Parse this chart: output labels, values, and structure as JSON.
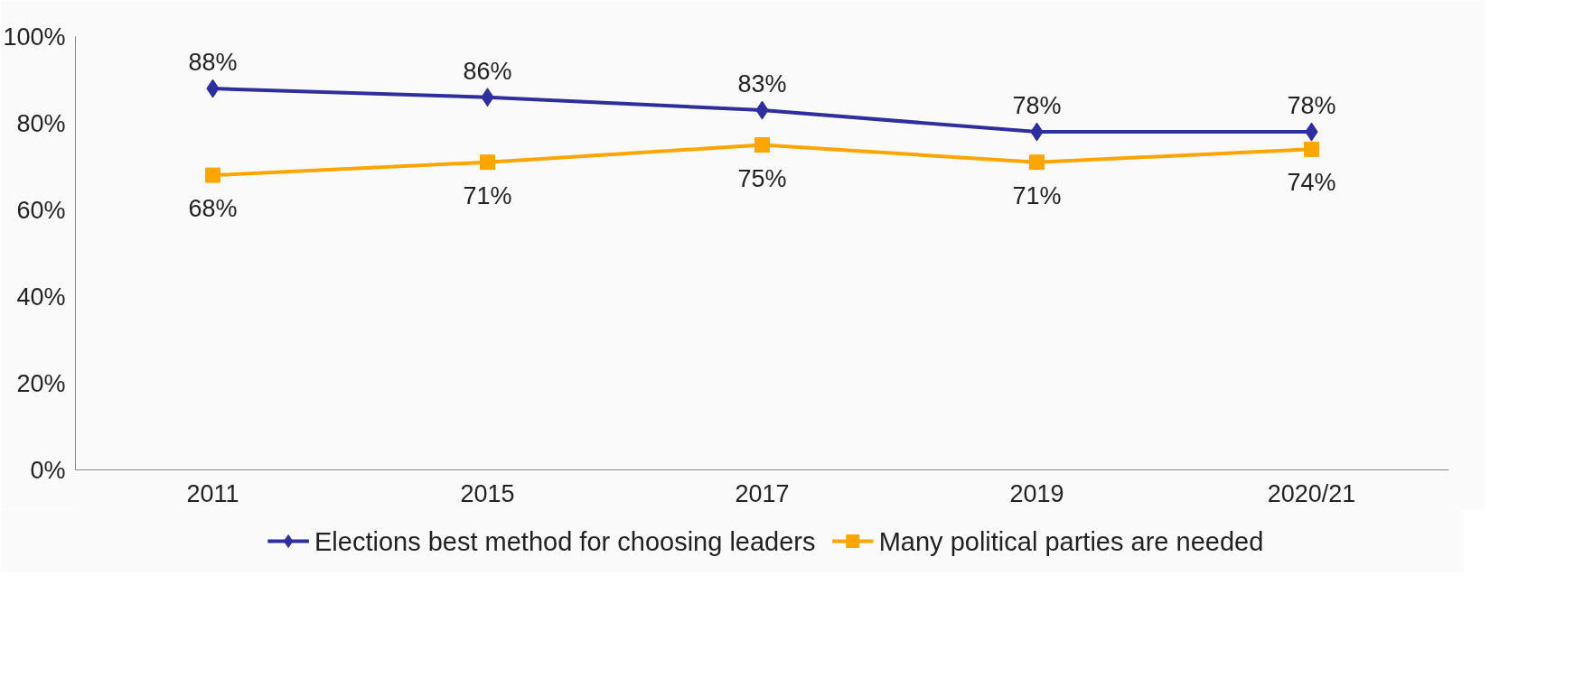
{
  "chart_data": {
    "type": "line",
    "categories": [
      "2011",
      "2015",
      "2017",
      "2019",
      "2020/21"
    ],
    "series": [
      {
        "name": "Elections best method for choosing leaders",
        "color": "#2e2e9e",
        "marker": "diamond",
        "values": [
          88,
          86,
          83,
          78,
          78
        ],
        "value_labels": [
          "88%",
          "86%",
          "83%",
          "78%",
          "78%"
        ]
      },
      {
        "name": "Many political parties are needed",
        "color": "#ffa500",
        "marker": "square",
        "values": [
          68,
          71,
          75,
          71,
          74
        ],
        "value_labels": [
          "68%",
          "71%",
          "75%",
          "71%",
          "74%"
        ]
      }
    ],
    "ylim": [
      0,
      100
    ],
    "yticks": [
      {
        "value": 0,
        "label": "0%"
      },
      {
        "value": 20,
        "label": "20%"
      },
      {
        "value": 40,
        "label": "40%"
      },
      {
        "value": 60,
        "label": "60%"
      },
      {
        "value": 80,
        "label": "80%"
      },
      {
        "value": 100,
        "label": "100%"
      }
    ],
    "grid": false,
    "legend": "bottom",
    "line_style": "solid"
  }
}
